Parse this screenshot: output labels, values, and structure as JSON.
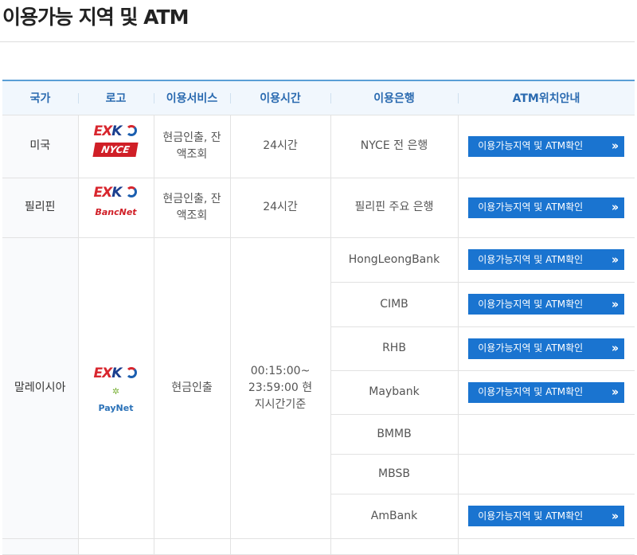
{
  "page_title": "이용가능 지역 및 ATM",
  "headers": [
    "국가",
    "로고",
    "이용서비스",
    "이용시간",
    "이용은행",
    "ATM위치안내"
  ],
  "button_label": "이용가능지역 및 ATM확인",
  "rows": [
    {
      "country": "미국",
      "logo": "EXK NYCE",
      "service": "현금인출, 잔액조회",
      "hours": "24시간",
      "bank": "NYCE 전 은행"
    },
    {
      "country": "필리핀",
      "logo": "EXK BancNet",
      "service": "현금인출, 잔액조회",
      "hours": "24시간",
      "bank": "필리핀 주요 은행"
    },
    {
      "country": "말레이시아",
      "logo": "EXK PayNet",
      "service": "현금인출",
      "hours": "00:15:00~ 23:59:00 현지시간기준",
      "banks": [
        {
          "name": "HongLeongBank",
          "has_button": true
        },
        {
          "name": "CIMB",
          "has_button": true
        },
        {
          "name": "RHB",
          "has_button": true
        },
        {
          "name": "Maybank",
          "has_button": true
        },
        {
          "name": "BMMB",
          "has_button": false
        },
        {
          "name": "MBSB",
          "has_button": false
        },
        {
          "name": "AmBank",
          "has_button": true
        }
      ]
    }
  ],
  "colors": {
    "button": "#1a74d0",
    "header_text": "#2a6ab0",
    "header_bg": "#f1f7fd"
  }
}
